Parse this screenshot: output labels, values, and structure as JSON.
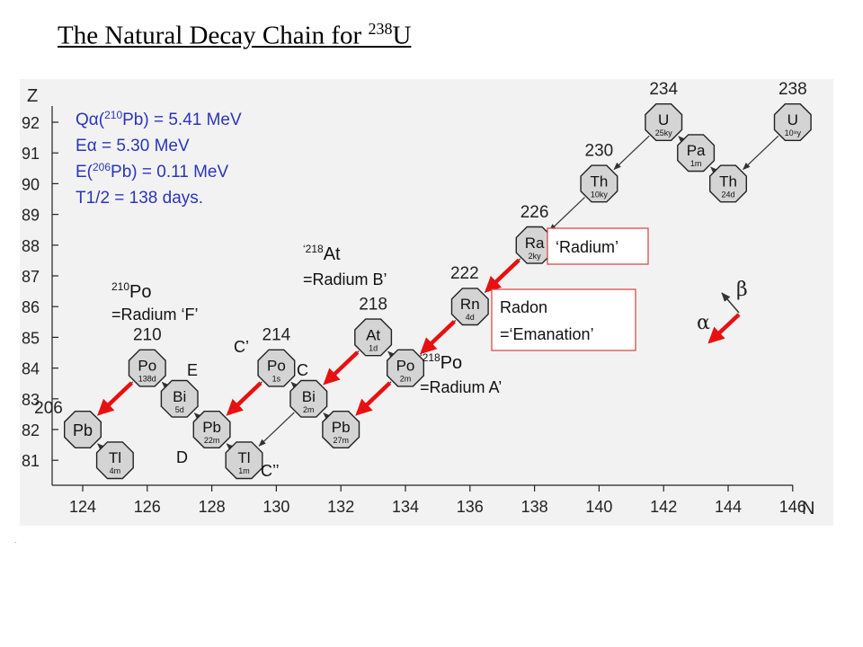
{
  "title": {
    "text": "The Natural Decay Chain for ",
    "mass": "238",
    "symbol": "U"
  },
  "axes": {
    "y_label": "Z",
    "y_ticks": [
      "92",
      "91",
      "90",
      "89",
      "88",
      "87",
      "86",
      "85",
      "84",
      "83",
      "82",
      "81"
    ],
    "x_label": "N",
    "x_ticks": [
      "124",
      "126",
      "128",
      "130",
      "132",
      "134",
      "136",
      "138",
      "140",
      "142",
      "144",
      "146"
    ]
  },
  "info": {
    "q_label_pre": "Q",
    "q_label_greek": "α",
    "q_paren_open": "(",
    "q_mass": "210",
    "q_rest": "Pb) = 5.41 MeV",
    "e_alpha_pre": "E",
    "e_alpha_greek": "α",
    "e_alpha_rest": " = 5.30 MeV",
    "e_pb_pre": "E(",
    "e_pb_mass": "206",
    "e_pb_rest": "Pb) = 0.11 MeV",
    "half_life": "T1/2 = 138 days."
  },
  "nuclides": [
    {
      "id": "u238",
      "symbol": "U",
      "halflife": "10⁹y",
      "N": 146,
      "Z": 92
    },
    {
      "id": "th234",
      "symbol": "Th",
      "halflife": "24d",
      "N": 144,
      "Z": 90
    },
    {
      "id": "pa234",
      "symbol": "Pa",
      "halflife": "1m",
      "N": 143,
      "Z": 91
    },
    {
      "id": "u234",
      "symbol": "U",
      "halflife": "25ky",
      "N": 142,
      "Z": 92
    },
    {
      "id": "th230",
      "symbol": "Th",
      "halflife": "10ky",
      "N": 140,
      "Z": 90
    },
    {
      "id": "ra226",
      "symbol": "Ra",
      "halflife": "2ky",
      "N": 138,
      "Z": 88
    },
    {
      "id": "rn222",
      "symbol": "Rn",
      "halflife": "4d",
      "N": 136,
      "Z": 86
    },
    {
      "id": "po218",
      "symbol": "Po",
      "halflife": "2m",
      "N": 134,
      "Z": 84
    },
    {
      "id": "at218",
      "symbol": "At",
      "halflife": "1d",
      "N": 133,
      "Z": 85
    },
    {
      "id": "pb214",
      "symbol": "Pb",
      "halflife": "27m",
      "N": 132,
      "Z": 82
    },
    {
      "id": "bi214",
      "symbol": "Bi",
      "halflife": "2m",
      "N": 131,
      "Z": 83
    },
    {
      "id": "po214",
      "symbol": "Po",
      "halflife": "1s",
      "N": 130,
      "Z": 84
    },
    {
      "id": "tl210",
      "symbol": "Tl",
      "halflife": "1m",
      "N": 129,
      "Z": 81
    },
    {
      "id": "pb210",
      "symbol": "Pb",
      "halflife": "22m",
      "N": 128,
      "Z": 82
    },
    {
      "id": "bi210",
      "symbol": "Bi",
      "halflife": "5d",
      "N": 127,
      "Z": 83
    },
    {
      "id": "po210",
      "symbol": "Po",
      "halflife": "138d",
      "N": 126,
      "Z": 84
    },
    {
      "id": "tl206",
      "symbol": "Tl",
      "halflife": "4m",
      "N": 125,
      "Z": 81
    },
    {
      "id": "pb206",
      "symbol": "Pb",
      "halflife": "",
      "N": 124,
      "Z": 82
    }
  ],
  "mass_labels": [
    {
      "text": "238",
      "N": 146,
      "Z": 92
    },
    {
      "text": "234",
      "N": 142,
      "Z": 92
    },
    {
      "text": "230",
      "N": 140,
      "Z": 90
    },
    {
      "text": "226",
      "N": 138,
      "Z": 88
    },
    {
      "text": "222",
      "N": 136,
      "Z": 86
    },
    {
      "text": "218",
      "N": 133,
      "Z": 85
    },
    {
      "text": "214",
      "N": 130,
      "Z": 84
    },
    {
      "text": "210",
      "N": 126,
      "Z": 84
    },
    {
      "text": "206",
      "N": 124,
      "Z": 82
    }
  ],
  "alpha_arrows": [
    {
      "from": [
        146,
        92
      ],
      "to": [
        144,
        90
      ]
    },
    {
      "from": [
        142,
        92
      ],
      "to": [
        140,
        90
      ]
    },
    {
      "from": [
        140,
        90
      ],
      "to": [
        138,
        88
      ]
    },
    {
      "from": [
        138,
        88
      ],
      "to": [
        136,
        86
      ]
    },
    {
      "from": [
        136,
        86
      ],
      "to": [
        134,
        84
      ]
    },
    {
      "from": [
        134,
        84
      ],
      "to": [
        132,
        82
      ]
    },
    {
      "from": [
        133,
        85
      ],
      "to": [
        131,
        83
      ]
    },
    {
      "from": [
        130,
        84
      ],
      "to": [
        128,
        82
      ]
    },
    {
      "from": [
        131,
        83
      ],
      "to": [
        129,
        81
      ]
    },
    {
      "from": [
        126,
        84
      ],
      "to": [
        124,
        82
      ]
    }
  ],
  "beta_arrows": [
    {
      "from": [
        144,
        90
      ],
      "to": [
        143,
        91
      ]
    },
    {
      "from": [
        143,
        91
      ],
      "to": [
        142,
        92
      ]
    },
    {
      "from": [
        134,
        84
      ],
      "to": [
        133,
        85
      ]
    },
    {
      "from": [
        132,
        82
      ],
      "to": [
        131,
        83
      ]
    },
    {
      "from": [
        131,
        83
      ],
      "to": [
        130,
        84
      ]
    },
    {
      "from": [
        129,
        81
      ],
      "to": [
        128,
        82
      ]
    },
    {
      "from": [
        128,
        82
      ],
      "to": [
        127,
        83
      ]
    },
    {
      "from": [
        127,
        83
      ],
      "to": [
        126,
        84
      ]
    },
    {
      "from": [
        125,
        81
      ],
      "to": [
        124,
        82
      ]
    }
  ],
  "highlighted_alpha": [
    {
      "from": [
        138,
        88
      ],
      "to": [
        136,
        86
      ]
    },
    {
      "from": [
        136,
        86
      ],
      "to": [
        134,
        84
      ]
    },
    {
      "from": [
        134,
        84
      ],
      "to": [
        132,
        82
      ]
    },
    {
      "from": [
        133,
        85
      ],
      "to": [
        131,
        83
      ]
    },
    {
      "from": [
        130,
        84
      ],
      "to": [
        128,
        82
      ]
    },
    {
      "from": [
        126,
        84
      ],
      "to": [
        124,
        82
      ]
    }
  ],
  "annotations": {
    "po210_mass": "210",
    "po210_sym": "Po",
    "po210_name": "=Radium ‘F’",
    "at218_q": "‘",
    "at218_mass": "218",
    "at218_sym": "At",
    "at218_name": "=Radium B’",
    "po218_q": "‘",
    "po218_mass": "218",
    "po218_sym": "Po",
    "po218_name": "=Radium A’",
    "e": "E",
    "d": "D",
    "c": "C",
    "c_prime": "C’",
    "c_dprime": "C’’",
    "radium": "‘Radium’",
    "radon_1": "Radon",
    "radon_2": "=‘Emanation’"
  },
  "legend": {
    "beta": "β",
    "alpha": "α"
  },
  "colors": {
    "arrow_red": "#e81010",
    "info_blue": "#2b36b8",
    "box_border": "#d84040",
    "node_fill": "#d4d4d4"
  }
}
